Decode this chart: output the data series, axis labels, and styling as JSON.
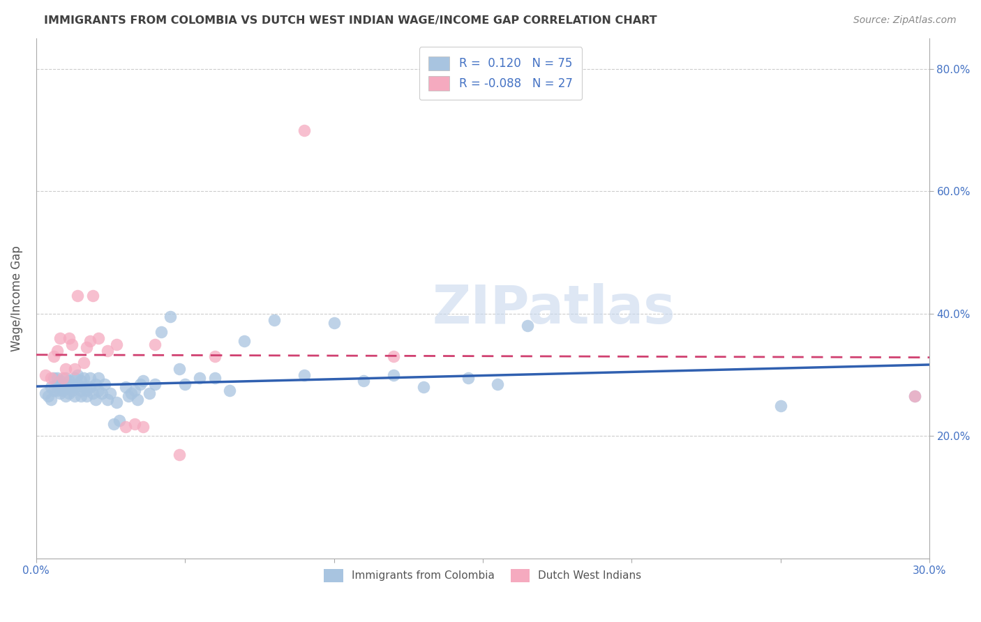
{
  "title": "IMMIGRANTS FROM COLOMBIA VS DUTCH WEST INDIAN WAGE/INCOME GAP CORRELATION CHART",
  "source": "Source: ZipAtlas.com",
  "ylabel": "Wage/Income Gap",
  "xmin": 0.0,
  "xmax": 0.3,
  "ymin": 0.0,
  "ymax": 0.85,
  "yticks": [
    0.2,
    0.4,
    0.6,
    0.8
  ],
  "ytick_labels": [
    "20.0%",
    "40.0%",
    "60.0%",
    "80.0%"
  ],
  "xticks": [
    0.0,
    0.05,
    0.1,
    0.15,
    0.2,
    0.25,
    0.3
  ],
  "xtick_labels": [
    "0.0%",
    "",
    "",
    "",
    "",
    "",
    "30.0%"
  ],
  "watermark": "ZIPatlas",
  "legend_R1": "R =  0.120",
  "legend_N1": "N = 75",
  "legend_R2": "R = -0.088",
  "legend_N2": "N = 27",
  "color_blue": "#a8c4e0",
  "color_pink": "#f5aabf",
  "line_blue": "#3060b0",
  "line_pink": "#d04070",
  "title_color": "#404040",
  "axis_color": "#4472c4",
  "blue_scatter_x": [
    0.003,
    0.004,
    0.005,
    0.005,
    0.006,
    0.006,
    0.007,
    0.007,
    0.007,
    0.008,
    0.008,
    0.009,
    0.009,
    0.01,
    0.01,
    0.01,
    0.011,
    0.011,
    0.011,
    0.012,
    0.012,
    0.013,
    0.013,
    0.013,
    0.014,
    0.014,
    0.015,
    0.015,
    0.015,
    0.016,
    0.016,
    0.017,
    0.017,
    0.018,
    0.018,
    0.019,
    0.02,
    0.02,
    0.021,
    0.021,
    0.022,
    0.023,
    0.024,
    0.025,
    0.026,
    0.027,
    0.028,
    0.03,
    0.031,
    0.032,
    0.033,
    0.034,
    0.035,
    0.036,
    0.038,
    0.04,
    0.042,
    0.045,
    0.048,
    0.05,
    0.055,
    0.06,
    0.065,
    0.07,
    0.08,
    0.09,
    0.1,
    0.11,
    0.12,
    0.13,
    0.145,
    0.155,
    0.165,
    0.25,
    0.295
  ],
  "blue_scatter_y": [
    0.27,
    0.265,
    0.28,
    0.26,
    0.295,
    0.275,
    0.285,
    0.295,
    0.275,
    0.29,
    0.27,
    0.28,
    0.275,
    0.285,
    0.295,
    0.265,
    0.28,
    0.29,
    0.27,
    0.285,
    0.275,
    0.28,
    0.265,
    0.295,
    0.285,
    0.3,
    0.275,
    0.265,
    0.29,
    0.295,
    0.28,
    0.275,
    0.265,
    0.28,
    0.295,
    0.27,
    0.26,
    0.285,
    0.275,
    0.295,
    0.27,
    0.285,
    0.26,
    0.27,
    0.22,
    0.255,
    0.225,
    0.28,
    0.265,
    0.27,
    0.275,
    0.26,
    0.285,
    0.29,
    0.27,
    0.285,
    0.37,
    0.395,
    0.31,
    0.285,
    0.295,
    0.295,
    0.275,
    0.355,
    0.39,
    0.3,
    0.385,
    0.29,
    0.3,
    0.28,
    0.295,
    0.285,
    0.38,
    0.25,
    0.265
  ],
  "pink_scatter_x": [
    0.003,
    0.005,
    0.006,
    0.007,
    0.008,
    0.009,
    0.01,
    0.011,
    0.012,
    0.013,
    0.014,
    0.016,
    0.017,
    0.018,
    0.019,
    0.021,
    0.024,
    0.027,
    0.03,
    0.033,
    0.036,
    0.04,
    0.048,
    0.06,
    0.09,
    0.12,
    0.295
  ],
  "pink_scatter_y": [
    0.3,
    0.295,
    0.33,
    0.34,
    0.36,
    0.295,
    0.31,
    0.36,
    0.35,
    0.31,
    0.43,
    0.32,
    0.345,
    0.355,
    0.43,
    0.36,
    0.34,
    0.35,
    0.215,
    0.22,
    0.215,
    0.35,
    0.17,
    0.33,
    0.7,
    0.33,
    0.265
  ]
}
